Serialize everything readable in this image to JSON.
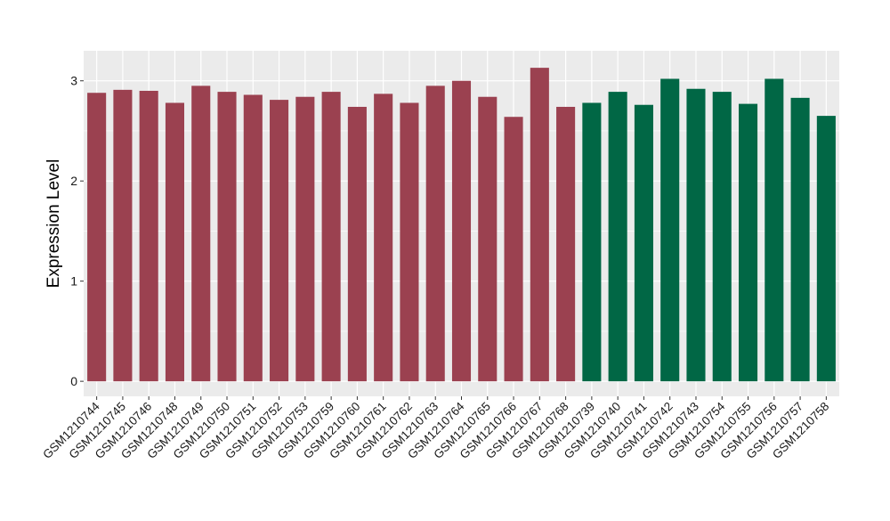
{
  "chart_data": {
    "type": "bar",
    "title": "",
    "xlabel": "",
    "ylabel": "Expression Level",
    "ylim": [
      -0.15,
      3.3
    ],
    "yticks": [
      0,
      1,
      2,
      3
    ],
    "grid": true,
    "categories": [
      "GSM1210744",
      "GSM1210745",
      "GSM1210746",
      "GSM1210748",
      "GSM1210749",
      "GSM1210750",
      "GSM1210751",
      "GSM1210752",
      "GSM1210753",
      "GSM1210759",
      "GSM1210760",
      "GSM1210761",
      "GSM1210762",
      "GSM1210763",
      "GSM1210764",
      "GSM1210765",
      "GSM1210766",
      "GSM1210767",
      "GSM1210768",
      "GSM1210739",
      "GSM1210740",
      "GSM1210741",
      "GSM1210742",
      "GSM1210743",
      "GSM1210754",
      "GSM1210755",
      "GSM1210756",
      "GSM1210757",
      "GSM1210758"
    ],
    "values": [
      2.88,
      2.91,
      2.9,
      2.78,
      2.95,
      2.89,
      2.86,
      2.81,
      2.84,
      2.89,
      2.74,
      2.87,
      2.78,
      2.95,
      3.0,
      2.84,
      2.64,
      3.13,
      2.74,
      2.78,
      2.89,
      2.76,
      3.02,
      2.92,
      2.89,
      2.77,
      3.02,
      2.83,
      2.65
    ],
    "groups": [
      0,
      0,
      0,
      0,
      0,
      0,
      0,
      0,
      0,
      0,
      0,
      0,
      0,
      0,
      0,
      0,
      0,
      0,
      0,
      1,
      1,
      1,
      1,
      1,
      1,
      1,
      1,
      1,
      1
    ],
    "group_colors": [
      "#9b4150",
      "#016745"
    ],
    "panel_background": "#ebebeb",
    "grid_color": "#ffffff"
  }
}
